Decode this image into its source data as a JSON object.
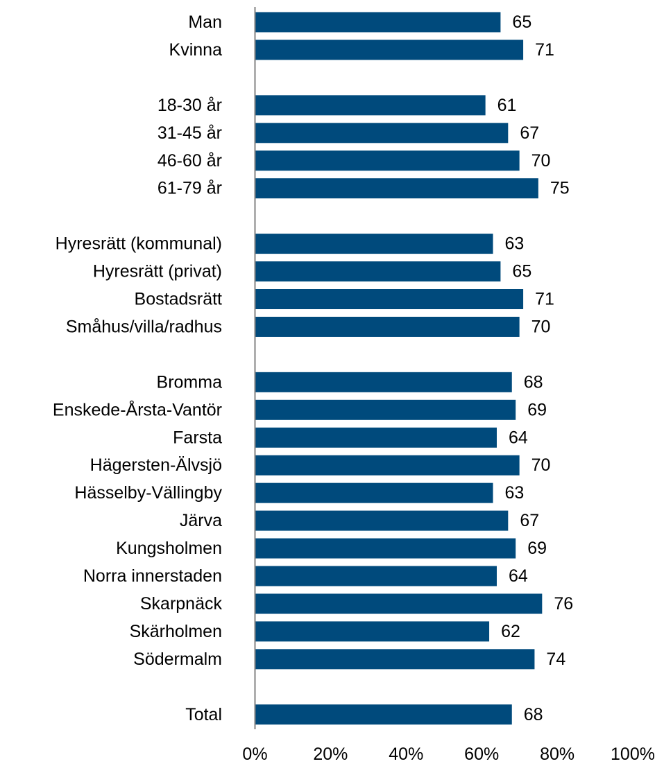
{
  "chart_data": {
    "type": "bar",
    "orientation": "horizontal",
    "title": "",
    "xlabel": "",
    "ylabel": "",
    "xlim": [
      0,
      100
    ],
    "x_ticks": [
      "0%",
      "20%",
      "40%",
      "60%",
      "80%",
      "100%"
    ],
    "grid": false,
    "legend": "none",
    "bar_color": "#004A7C",
    "rows": [
      {
        "label": "Man",
        "value": 65
      },
      {
        "label": "Kvinna",
        "value": 71
      },
      {
        "label": "",
        "value": null
      },
      {
        "label": "18-30 år",
        "value": 61
      },
      {
        "label": "31-45 år",
        "value": 67
      },
      {
        "label": "46-60 år",
        "value": 70
      },
      {
        "label": "61-79 år",
        "value": 75
      },
      {
        "label": "",
        "value": null
      },
      {
        "label": "Hyresrätt (kommunal)",
        "value": 63
      },
      {
        "label": "Hyresrätt (privat)",
        "value": 65
      },
      {
        "label": "Bostadsrätt",
        "value": 71
      },
      {
        "label": "Småhus/villa/radhus",
        "value": 70
      },
      {
        "label": "",
        "value": null
      },
      {
        "label": "Bromma",
        "value": 68
      },
      {
        "label": "Enskede-Årsta-Vantör",
        "value": 69
      },
      {
        "label": "Farsta",
        "value": 64
      },
      {
        "label": "Hägersten-Älvsjö",
        "value": 70
      },
      {
        "label": "Hässelby-Vällingby",
        "value": 63
      },
      {
        "label": "Järva",
        "value": 67
      },
      {
        "label": "Kungsholmen",
        "value": 69
      },
      {
        "label": "Norra innerstaden",
        "value": 64
      },
      {
        "label": "Skarpnäck",
        "value": 76
      },
      {
        "label": "Skärholmen",
        "value": 62
      },
      {
        "label": "Södermalm",
        "value": 74
      },
      {
        "label": "",
        "value": null
      },
      {
        "label": "Total",
        "value": 68
      }
    ]
  }
}
